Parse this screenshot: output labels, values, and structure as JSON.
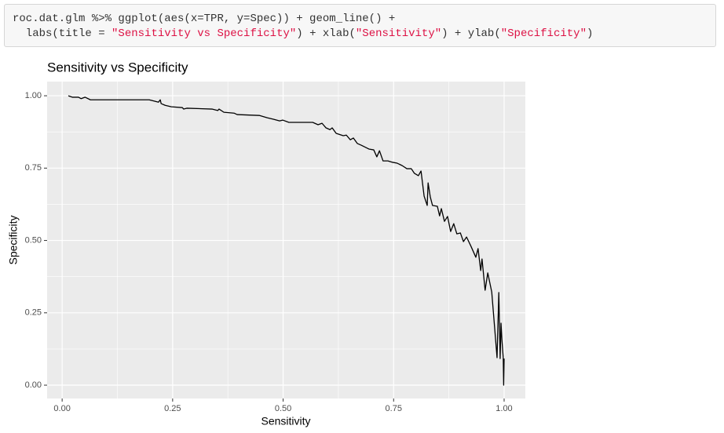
{
  "code": {
    "lines": [
      [
        "roc.dat.glm %>% ggplot(aes(x=TPR, y=Spec)) + geom_line() +"
      ],
      [
        "  labs(title = ",
        "\"Sensitivity vs Specificity\"",
        ") + xlab(",
        "\"Sensitivity\"",
        ") + ylab(",
        "\"Specificity\"",
        ")"
      ]
    ]
  },
  "chart_data": {
    "type": "line",
    "title": "Sensitivity vs Specificity",
    "x_label": "Sensitivity",
    "y_label": "Specificity",
    "x": [
      0.014,
      0.023,
      0.037,
      0.043,
      0.052,
      0.064,
      0.197,
      0.218,
      0.222,
      0.224,
      0.233,
      0.247,
      0.272,
      0.275,
      0.282,
      0.339,
      0.352,
      0.355,
      0.366,
      0.389,
      0.396,
      0.446,
      0.464,
      0.478,
      0.492,
      0.499,
      0.513,
      0.567,
      0.579,
      0.588,
      0.597,
      0.606,
      0.611,
      0.62,
      0.636,
      0.643,
      0.652,
      0.659,
      0.668,
      0.677,
      0.694,
      0.705,
      0.712,
      0.718,
      0.726,
      0.737,
      0.748,
      0.758,
      0.769,
      0.78,
      0.79,
      0.797,
      0.806,
      0.812,
      0.819,
      0.826,
      0.828,
      0.833,
      0.838,
      0.849,
      0.854,
      0.858,
      0.865,
      0.872,
      0.879,
      0.886,
      0.893,
      0.901,
      0.908,
      0.915,
      0.925,
      0.936,
      0.941,
      0.947,
      0.95,
      0.957,
      0.963,
      0.972,
      0.984,
      0.988,
      0.991,
      0.993,
      0.995,
      0.998,
      0.999,
      1.0
    ],
    "values": [
      1.0,
      0.995,
      0.995,
      0.99,
      0.995,
      0.986,
      0.986,
      0.978,
      0.986,
      0.973,
      0.967,
      0.962,
      0.959,
      0.954,
      0.957,
      0.954,
      0.949,
      0.954,
      0.943,
      0.94,
      0.935,
      0.932,
      0.924,
      0.919,
      0.913,
      0.916,
      0.908,
      0.908,
      0.9,
      0.905,
      0.889,
      0.883,
      0.889,
      0.87,
      0.862,
      0.864,
      0.848,
      0.854,
      0.835,
      0.829,
      0.816,
      0.813,
      0.789,
      0.81,
      0.775,
      0.775,
      0.77,
      0.767,
      0.759,
      0.748,
      0.748,
      0.732,
      0.724,
      0.74,
      0.653,
      0.621,
      0.699,
      0.65,
      0.621,
      0.618,
      0.585,
      0.61,
      0.566,
      0.583,
      0.531,
      0.558,
      0.523,
      0.526,
      0.496,
      0.512,
      0.48,
      0.442,
      0.472,
      0.396,
      0.436,
      0.328,
      0.388,
      0.322,
      0.095,
      0.32,
      0.092,
      0.214,
      0.157,
      0.095,
      0.0,
      0.092
    ],
    "color": "#000000",
    "xlim": [
      -0.034,
      1.048
    ],
    "ylim": [
      -0.046,
      1.049
    ],
    "xticks": [
      {
        "value": 0,
        "label": "0.00"
      },
      {
        "value": 0.25,
        "label": "0.25"
      },
      {
        "value": 0.5,
        "label": "0.50"
      },
      {
        "value": 0.75,
        "label": "0.75"
      },
      {
        "value": 1,
        "label": "1.00"
      }
    ],
    "yticks": [
      {
        "value": 0,
        "label": "0.00"
      },
      {
        "value": 0.25,
        "label": "0.25"
      },
      {
        "value": 0.5,
        "label": "0.50"
      },
      {
        "value": 0.75,
        "label": "0.75"
      },
      {
        "value": 1,
        "label": "1.00"
      }
    ],
    "grid": true,
    "minor_grid": true
  }
}
